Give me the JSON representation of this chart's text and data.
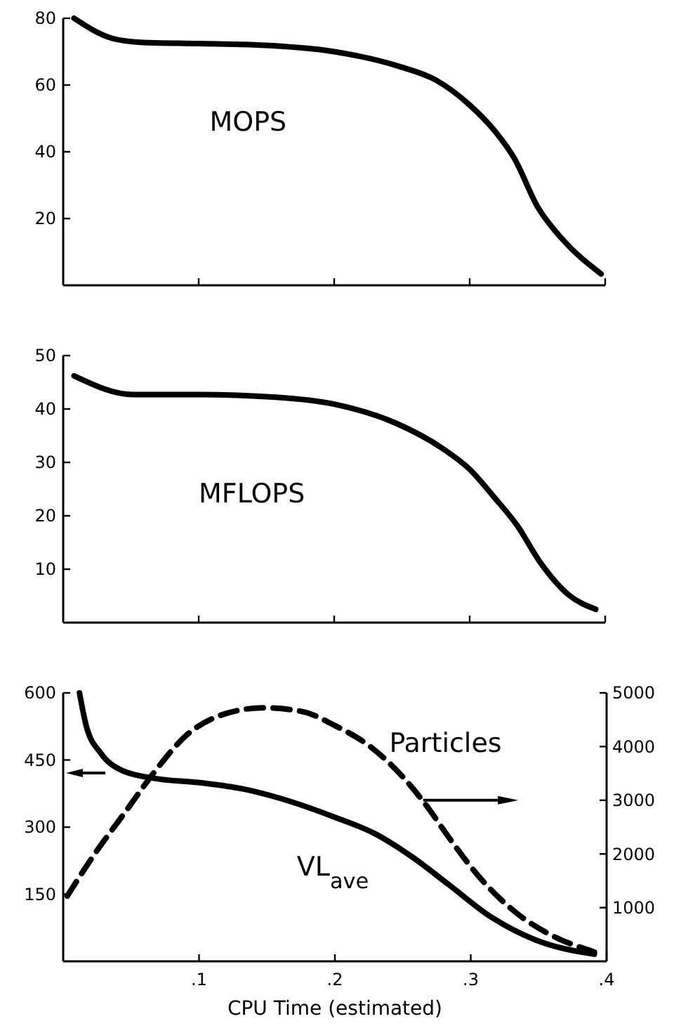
{
  "chart_data": [
    {
      "type": "line",
      "xlim": [
        0,
        0.4
      ],
      "xticks": [
        {
          "value": 0.1,
          "label": null
        },
        {
          "value": 0.2,
          "label": null
        },
        {
          "value": 0.3,
          "label": null
        },
        {
          "value": 0.4,
          "label": null
        }
      ],
      "ylim": [
        0,
        80
      ],
      "yticks": [
        20,
        40,
        60,
        80
      ],
      "tick_labels": "y",
      "series": [
        {
          "name": "MOPS",
          "color": "#000000",
          "x": [
            0.008,
            0.036,
            0.057,
            0.1,
            0.143,
            0.2,
            0.247,
            0.275,
            0.3,
            0.319,
            0.333,
            0.35,
            0.368,
            0.397
          ],
          "values": [
            80,
            74,
            72.8,
            72.4,
            72,
            70,
            65.7,
            61.5,
            54,
            46,
            38,
            23.6,
            14,
            3.4
          ]
        }
      ]
    },
    {
      "type": "line",
      "xlim": [
        0,
        0.4
      ],
      "xticks": [
        {
          "value": 0.1,
          "label": null
        },
        {
          "value": 0.2,
          "label": null
        },
        {
          "value": 0.3,
          "label": null
        },
        {
          "value": 0.4,
          "label": null
        }
      ],
      "ylim": [
        0,
        50
      ],
      "yticks": [
        10,
        20,
        30,
        40,
        50
      ],
      "tick_labels": "y",
      "series": [
        {
          "name": "MFLOPS",
          "color": "#000000",
          "x": [
            0.008,
            0.052,
            0.1,
            0.157,
            0.2,
            0.245,
            0.28,
            0.3,
            0.318,
            0.335,
            0.352,
            0.373,
            0.393
          ],
          "values": [
            46.2,
            42.7,
            42.7,
            42.2,
            40.9,
            37.4,
            32.6,
            28.7,
            23.5,
            18.2,
            11.3,
            5.2,
            2.5
          ]
        }
      ]
    },
    {
      "type": "line",
      "xlim": [
        0,
        0.4
      ],
      "xticks": [
        {
          "value": 0.1,
          "label": ".1"
        },
        {
          "value": 0.2,
          "label": ".2"
        },
        {
          "value": 0.3,
          "label": ".3"
        },
        {
          "value": 0.4,
          "label": ".4"
        }
      ],
      "ylim": [
        0,
        600
      ],
      "yticks": [
        150,
        300,
        450,
        600
      ],
      "y2lim": [
        0,
        5000
      ],
      "y2ticks": [
        1000,
        2000,
        3000,
        4000,
        5000
      ],
      "xlabel": "CPU Time (estimated)",
      "series": [
        {
          "name": "VL$_{ave}$",
          "color": "#000000",
          "line_style": "solid",
          "x": [
            0.012,
            0.017,
            0.028,
            0.043,
            0.067,
            0.102,
            0.133,
            0.16,
            0.2,
            0.229,
            0.257,
            0.284,
            0.316,
            0.35,
            0.391
          ],
          "values": [
            600,
            526,
            464,
            427,
            409,
            399,
            385,
            364,
            322,
            286,
            233,
            171,
            97,
            45,
            16
          ]
        },
        {
          "name": "Particles",
          "color": "#000000",
          "axis": "y2",
          "line_style": "dashed",
          "x": [
            0.003,
            0.022,
            0.047,
            0.067,
            0.091,
            0.119,
            0.147,
            0.176,
            0.2,
            0.226,
            0.25,
            0.267,
            0.284,
            0.305,
            0.333,
            0.36,
            0.391
          ],
          "values": [
            1217,
            1957,
            2826,
            3522,
            4217,
            4609,
            4722,
            4652,
            4391,
            4000,
            3435,
            2913,
            2304,
            1609,
            913,
            478,
            174
          ]
        }
      ]
    }
  ]
}
